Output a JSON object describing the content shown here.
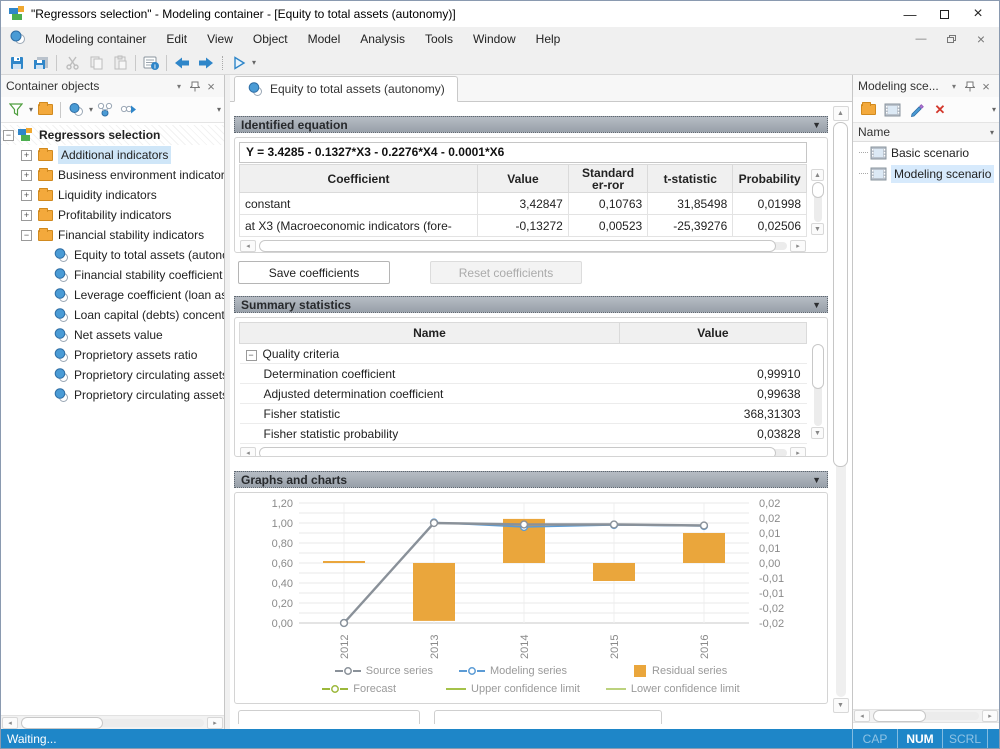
{
  "window": {
    "title": "\"Regressors selection\" - Modeling container - [Equity to total assets (autonomy)]"
  },
  "menu": {
    "items": [
      "Modeling container",
      "Edit",
      "View",
      "Object",
      "Model",
      "Analysis",
      "Tools",
      "Window",
      "Help"
    ]
  },
  "left_panel": {
    "title": "Container objects",
    "root": "Regressors selection",
    "folders": [
      "Additional indicators",
      "Business environment indicators",
      "Liquidity indicators",
      "Profitability indicators",
      "Financial stability indicators"
    ],
    "leaves": [
      "Equity to total assets (autono",
      "Financial stability coefficient",
      "Leverage coefficient (loan ass",
      "Loan capital (debts) concentr",
      "Net assets value",
      "Proprietory assets ratio",
      "Proprietory circulating assets",
      "Proprietory circulating assets"
    ]
  },
  "tab": {
    "label": "Equity to total assets (autonomy)"
  },
  "equation_section": {
    "title": "Identified equation",
    "equation": "Y = 3.4285 - 0.1327*X3 - 0.2276*X4 - 0.0001*X6",
    "headers": [
      "Coefficient",
      "Value",
      "Standard er-ror",
      "t-statistic",
      "Probability"
    ],
    "rows": [
      {
        "name": "constant",
        "values": [
          "3,42847",
          "0,10763",
          "31,85498",
          "0,01998"
        ]
      },
      {
        "name": "at X3 (Macroeconomic indicators (fore-",
        "values": [
          "-0,13272",
          "0,00523",
          "-25,39276",
          "0,02506"
        ]
      }
    ],
    "save_label": "Save coefficients",
    "reset_label": "Reset coefficients"
  },
  "summary_section": {
    "title": "Summary statistics",
    "headers": [
      "Name",
      "Value"
    ],
    "group": "Quality criteria",
    "rows": [
      [
        "Determination coefficient",
        "0,99910"
      ],
      [
        "Adjusted determination coefficient",
        "0,99638"
      ],
      [
        "Fisher statistic",
        "368,31303"
      ],
      [
        "Fisher statistic probability",
        "0,03828"
      ]
    ]
  },
  "charts_section": {
    "title": "Graphs and charts"
  },
  "chart_data": {
    "type": "combo line+bar",
    "x": [
      "2012",
      "2013",
      "2014",
      "2015",
      "2016"
    ],
    "series": [
      {
        "name": "Source series",
        "type": "line",
        "axis": "left",
        "color": "#8a9199",
        "values": [
          0.0,
          1.0,
          0.985,
          0.985,
          0.975
        ]
      },
      {
        "name": "Modeling series",
        "type": "line",
        "axis": "left",
        "color": "#5b9bd5",
        "values": [
          0.0,
          1.005,
          0.96,
          0.98,
          0.97
        ]
      },
      {
        "name": "Residual series",
        "type": "bar",
        "axis": "right",
        "color": "#eaa63c",
        "values": [
          -0.0005,
          -0.0193,
          0.0147,
          -0.006,
          0.01
        ]
      },
      {
        "name": "Forecast",
        "type": "line",
        "axis": "left",
        "color": "#9cb83b",
        "values": []
      },
      {
        "name": "Upper confidence limit",
        "type": "line",
        "axis": "left",
        "color": "#a5c24a",
        "values": []
      },
      {
        "name": "Lower confidence limit",
        "type": "line",
        "axis": "left",
        "color": "#bcd27e",
        "values": []
      }
    ],
    "left_axis": {
      "min": 0,
      "max": 1.2,
      "minor_step": 0.1,
      "tick_labels": [
        "0,00",
        "0,20",
        "0,40",
        "0,60",
        "0,80",
        "1,00",
        "1,20"
      ]
    },
    "right_axis": {
      "min": -0.02,
      "max": 0.02,
      "tick_labels_top_down": [
        "0,02",
        "0,02",
        "0,01",
        "0,01",
        "0,00",
        "-0,01",
        "-0,01",
        "-0,02",
        "-0,02"
      ]
    },
    "legend_position": "bottom",
    "grid": true
  },
  "right_panel": {
    "title": "Modeling sce...",
    "column": "Name",
    "items": [
      "Basic scenario",
      "Modeling scenario"
    ],
    "selected": "Modeling scenario"
  },
  "statusbar": {
    "text": "Waiting...",
    "toggles": [
      "CAP",
      "NUM",
      "SCRL"
    ],
    "accent_color": "#1e86c8"
  }
}
